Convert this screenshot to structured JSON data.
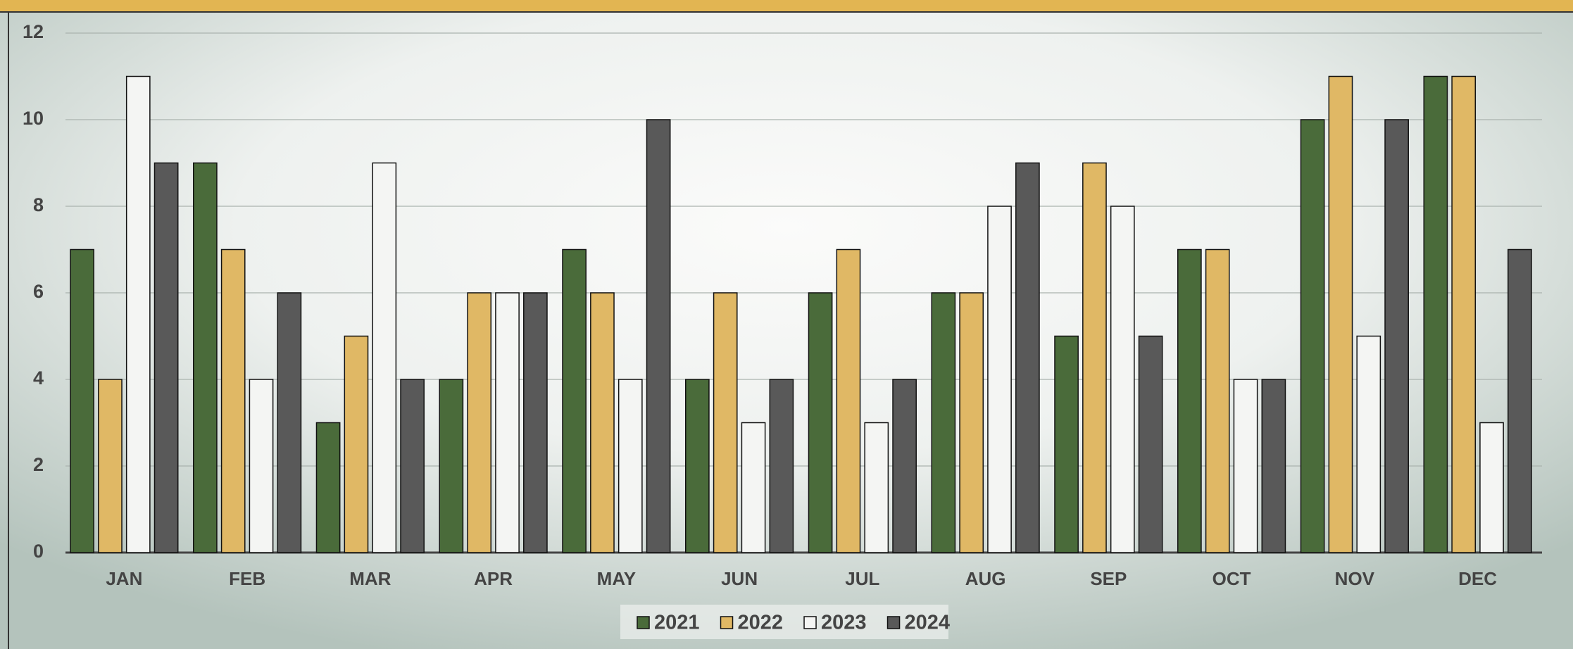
{
  "chart_data": {
    "type": "bar",
    "categories": [
      "JAN",
      "FEB",
      "MAR",
      "APR",
      "MAY",
      "JUN",
      "JUL",
      "AUG",
      "SEP",
      "OCT",
      "NOV",
      "DEC"
    ],
    "series": [
      {
        "name": "2021",
        "color": "#4a6b3a",
        "values": [
          7,
          9,
          3,
          4,
          7,
          4,
          6,
          6,
          5,
          7,
          10,
          11
        ]
      },
      {
        "name": "2022",
        "color": "#e0b865",
        "values": [
          4,
          7,
          5,
          6,
          6,
          6,
          7,
          6,
          9,
          7,
          11,
          11
        ]
      },
      {
        "name": "2023",
        "color": "#f4f5f3",
        "values": [
          11,
          4,
          9,
          6,
          4,
          3,
          3,
          8,
          8,
          4,
          5,
          3
        ]
      },
      {
        "name": "2024",
        "color": "#595959",
        "values": [
          9,
          6,
          4,
          6,
          10,
          4,
          4,
          9,
          5,
          4,
          10,
          7
        ]
      }
    ],
    "ylim": [
      0,
      12
    ],
    "yticks": [
      0,
      2,
      4,
      6,
      8,
      10,
      12
    ],
    "grid": true,
    "legend": "bottom"
  }
}
